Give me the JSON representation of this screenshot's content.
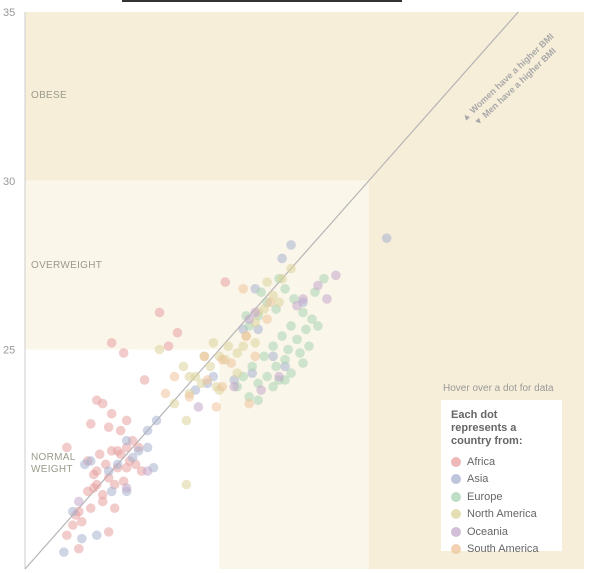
{
  "zones": {
    "obese": "OBESE",
    "overweight": "OVERWEIGHT",
    "normal": "NORMAL WEIGHT",
    "women_higher": "▲ Women have a higher BMI",
    "men_higher": "▼ Men have a higher BMI"
  },
  "hover_hint": "Hover over a dot for data",
  "legend": {
    "title": "Each dot represents a country from:",
    "items": [
      {
        "label": "Africa",
        "color": "#e8a0a0"
      },
      {
        "label": "Asia",
        "color": "#a8b3d0"
      },
      {
        "label": "Europe",
        "color": "#a9d3b3"
      },
      {
        "label": "North America",
        "color": "#ddd39a"
      },
      {
        "label": "Oceania",
        "color": "#c4a8cc"
      },
      {
        "label": "South America",
        "color": "#eec39a"
      }
    ]
  },
  "chart_data": {
    "type": "scatter",
    "xlim": [
      18.5,
      37.2
    ],
    "ylim": [
      18.5,
      35
    ],
    "yticks": [
      25,
      30,
      35
    ],
    "thresholds": {
      "normal": 25,
      "overweight": 30
    },
    "diagonal": "y = x",
    "series": [
      {
        "name": "Africa",
        "points": [
          [
            19.9,
            19.5
          ],
          [
            20.1,
            19.8
          ],
          [
            20.4,
            19.9
          ],
          [
            20.7,
            20.3
          ],
          [
            20.2,
            20.1
          ],
          [
            20.9,
            21.0
          ],
          [
            20.6,
            20.8
          ],
          [
            21.1,
            20.5
          ],
          [
            21.3,
            21.2
          ],
          [
            21.5,
            21.0
          ],
          [
            21.8,
            21.1
          ],
          [
            21.6,
            21.5
          ],
          [
            21.2,
            21.6
          ],
          [
            20.8,
            21.3
          ],
          [
            21.0,
            21.9
          ],
          [
            21.4,
            22.0
          ],
          [
            21.9,
            22.1
          ],
          [
            22.3,
            22.1
          ],
          [
            21.7,
            22.6
          ],
          [
            21.3,
            22.7
          ],
          [
            20.6,
            21.7
          ],
          [
            20.9,
            21.4
          ],
          [
            21.7,
            21.9
          ],
          [
            22.0,
            21.7
          ],
          [
            21.5,
            20.3
          ],
          [
            20.8,
            20.9
          ],
          [
            20.3,
            20.2
          ],
          [
            21.1,
            20.7
          ],
          [
            21.9,
            21.5
          ],
          [
            22.2,
            21.6
          ],
          [
            22.1,
            22.3
          ],
          [
            21.4,
            23.1
          ],
          [
            20.9,
            23.5
          ],
          [
            21.6,
            22.0
          ],
          [
            20.7,
            22.8
          ],
          [
            19.9,
            22.1
          ],
          [
            22.4,
            21.4
          ],
          [
            21.9,
            22.9
          ],
          [
            20.3,
            19.1
          ],
          [
            21.3,
            19.6
          ],
          [
            23.3,
            25.1
          ],
          [
            23.0,
            26.1
          ],
          [
            25.2,
            27.0
          ],
          [
            23.6,
            25.5
          ],
          [
            21.4,
            25.2
          ],
          [
            21.8,
            24.9
          ],
          [
            22.5,
            24.1
          ],
          [
            21.1,
            23.4
          ]
        ]
      },
      {
        "name": "Asia",
        "points": [
          [
            19.8,
            19.0
          ],
          [
            20.4,
            19.4
          ],
          [
            20.9,
            19.5
          ],
          [
            21.4,
            20.8
          ],
          [
            22.3,
            22.0
          ],
          [
            22.6,
            22.6
          ],
          [
            21.9,
            22.3
          ],
          [
            21.6,
            21.6
          ],
          [
            20.5,
            21.6
          ],
          [
            20.1,
            20.2
          ],
          [
            20.7,
            21.7
          ],
          [
            21.3,
            21.4
          ],
          [
            22.1,
            21.8
          ],
          [
            22.8,
            21.5
          ],
          [
            22.6,
            22.1
          ],
          [
            22.9,
            22.9
          ],
          [
            24.2,
            23.8
          ],
          [
            24.8,
            24.2
          ],
          [
            25.8,
            25.6
          ],
          [
            26.2,
            26.8
          ],
          [
            27.1,
            27.7
          ],
          [
            27.4,
            28.1
          ],
          [
            26.3,
            25.6
          ],
          [
            25.5,
            24.1
          ],
          [
            26.1,
            24.3
          ],
          [
            26.8,
            24.8
          ],
          [
            27.2,
            24.5
          ],
          [
            24.6,
            24.0
          ],
          [
            30.6,
            28.3
          ],
          [
            27.8,
            26.4
          ],
          [
            21.9,
            20.8
          ]
        ]
      },
      {
        "name": "Europe",
        "points": [
          [
            26.3,
            26.0
          ],
          [
            26.6,
            26.4
          ],
          [
            26.9,
            26.2
          ],
          [
            27.2,
            26.8
          ],
          [
            27.5,
            26.5
          ],
          [
            27.8,
            26.1
          ],
          [
            27.4,
            25.7
          ],
          [
            27.1,
            25.4
          ],
          [
            26.8,
            25.1
          ],
          [
            27.3,
            25.0
          ],
          [
            27.6,
            25.3
          ],
          [
            27.9,
            25.6
          ],
          [
            28.1,
            25.9
          ],
          [
            27.7,
            24.9
          ],
          [
            27.2,
            24.7
          ],
          [
            26.9,
            24.5
          ],
          [
            26.6,
            24.2
          ],
          [
            26.3,
            24.0
          ],
          [
            26.1,
            24.5
          ],
          [
            26.5,
            24.8
          ],
          [
            26.8,
            23.9
          ],
          [
            27.0,
            24.1
          ],
          [
            27.4,
            24.3
          ],
          [
            27.8,
            24.6
          ],
          [
            28.2,
            26.7
          ],
          [
            28.5,
            27.1
          ],
          [
            28.3,
            25.7
          ],
          [
            26.4,
            26.7
          ],
          [
            27.0,
            27.1
          ],
          [
            25.9,
            26.0
          ],
          [
            26.0,
            25.7
          ],
          [
            25.8,
            24.2
          ],
          [
            26.0,
            23.6
          ],
          [
            27.2,
            24.1
          ],
          [
            26.3,
            23.5
          ],
          [
            25.6,
            23.9
          ],
          [
            28.0,
            25.1
          ]
        ]
      },
      {
        "name": "North America",
        "points": [
          [
            24.0,
            23.7
          ],
          [
            24.4,
            24.0
          ],
          [
            24.7,
            24.5
          ],
          [
            25.0,
            24.8
          ],
          [
            25.3,
            25.1
          ],
          [
            25.6,
            24.9
          ],
          [
            25.9,
            25.4
          ],
          [
            26.2,
            25.8
          ],
          [
            26.5,
            26.2
          ],
          [
            26.8,
            26.6
          ],
          [
            27.1,
            27.1
          ],
          [
            27.4,
            27.4
          ],
          [
            26.6,
            27.0
          ],
          [
            27.0,
            26.4
          ],
          [
            26.3,
            26.1
          ],
          [
            25.8,
            25.1
          ],
          [
            24.2,
            24.2
          ],
          [
            24.9,
            23.9
          ],
          [
            25.2,
            24.7
          ],
          [
            24.5,
            24.8
          ],
          [
            24.8,
            25.2
          ],
          [
            23.5,
            23.4
          ],
          [
            23.0,
            25.0
          ],
          [
            23.9,
            22.9
          ],
          [
            25.0,
            23.8
          ],
          [
            25.6,
            24.3
          ],
          [
            23.9,
            21.0
          ],
          [
            24.0,
            24.2
          ],
          [
            23.8,
            24.5
          ],
          [
            26.2,
            25.2
          ]
        ]
      },
      {
        "name": "Oceania",
        "points": [
          [
            20.3,
            20.5
          ],
          [
            21.9,
            20.9
          ],
          [
            22.6,
            21.4
          ],
          [
            24.3,
            23.3
          ],
          [
            25.5,
            23.9
          ],
          [
            26.4,
            23.8
          ],
          [
            27.0,
            24.2
          ],
          [
            27.6,
            26.3
          ],
          [
            28.3,
            26.9
          ],
          [
            28.9,
            27.2
          ],
          [
            28.6,
            26.5
          ],
          [
            26.2,
            26.1
          ],
          [
            26.0,
            25.9
          ],
          [
            27.8,
            26.5
          ]
        ]
      },
      {
        "name": "South America",
        "points": [
          [
            23.5,
            24.2
          ],
          [
            24.0,
            23.6
          ],
          [
            24.6,
            24.1
          ],
          [
            25.1,
            23.9
          ],
          [
            25.4,
            24.6
          ],
          [
            25.9,
            25.4
          ],
          [
            26.2,
            24.8
          ],
          [
            26.6,
            25.9
          ],
          [
            25.8,
            26.8
          ],
          [
            24.5,
            24.8
          ],
          [
            25.1,
            24.7
          ],
          [
            26.0,
            23.4
          ],
          [
            24.9,
            23.3
          ],
          [
            23.2,
            23.7
          ],
          [
            26.7,
            26.4
          ]
        ]
      }
    ]
  }
}
